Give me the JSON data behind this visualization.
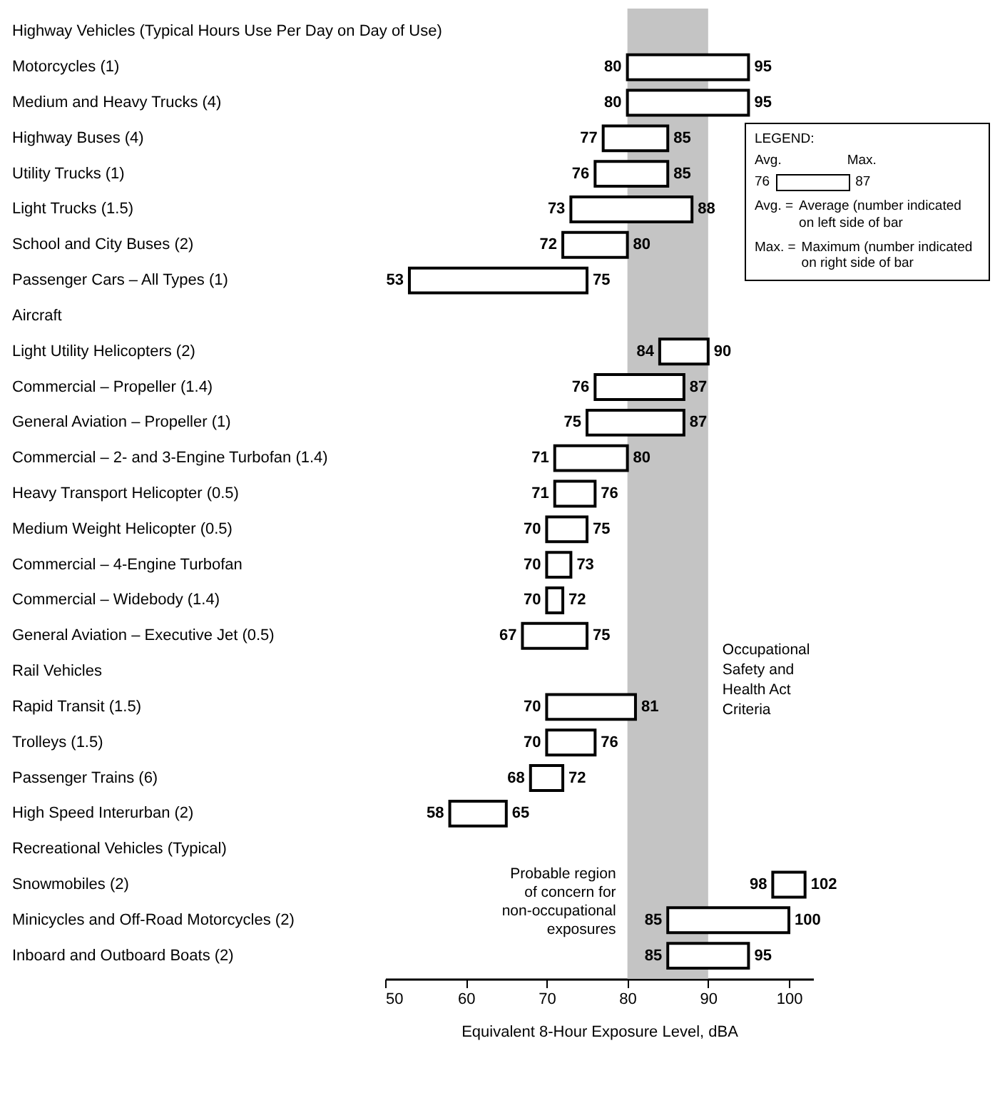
{
  "chart_data": {
    "type": "bar",
    "orientation": "horizontal",
    "xlabel": "Equivalent 8-Hour Exposure Level, dBA",
    "categories": [
      "Highway Vehicles (Typical Hours Use Per Day on Day of Use)",
      "Motorcycles (1)",
      "Medium and Heavy Trucks (4)",
      "Highway Buses (4)",
      "Utility Trucks (1)",
      "Light Trucks (1.5)",
      "School and City Buses (2)",
      "Passenger Cars – All Types (1)",
      "Aircraft",
      "Light Utility Helicopters (2)",
      "Commercial – Propeller (1.4)",
      "General Aviation – Propeller (1)",
      "Commercial – 2- and 3-Engine Turbofan (1.4)",
      "Heavy Transport Helicopter (0.5)",
      "Medium Weight Helicopter (0.5)",
      "Commercial – 4-Engine Turbofan",
      "Commercial – Widebody (1.4)",
      "General Aviation – Executive Jet (0.5)",
      "Rail Vehicles",
      "Rapid Transit (1.5)",
      "Trolleys (1.5)",
      "Passenger Trains (6)",
      "High Speed Interurban (2)",
      "Recreational Vehicles     (Typical)",
      "Snowmobiles (2)",
      "Minicycles and Off-Road Motorcycles (2)",
      "Inboard and Outboard Boats (2)"
    ],
    "base": [
      null,
      80,
      80,
      77,
      76,
      73,
      72,
      53,
      null,
      84,
      76,
      75,
      71,
      71,
      70,
      70,
      70,
      67,
      null,
      70,
      70,
      68,
      58,
      null,
      98,
      85,
      85
    ],
    "values": [
      null,
      15,
      15,
      8,
      9,
      15,
      8,
      22,
      null,
      6,
      11,
      12,
      9,
      5,
      5,
      3,
      2,
      8,
      null,
      11,
      6,
      4,
      7,
      null,
      4,
      15,
      10
    ],
    "value_labels": [
      null,
      "95",
      "95",
      "85",
      "85",
      "88",
      "80",
      "75",
      null,
      "90",
      "87",
      "87",
      "80",
      "76",
      "75",
      "73",
      "72",
      "75",
      null,
      "81",
      "76",
      "72",
      "65",
      null,
      "102",
      "100",
      "95"
    ],
    "color": "#ffffff",
    "xlim": [
      50,
      103
    ],
    "xticks": [
      50,
      60,
      70,
      80,
      90,
      100
    ],
    "bands": [
      {
        "axis": "x",
        "from": 80,
        "to": 90,
        "label": "Occupational Safety and Health Act Criteria",
        "color": "#c4c4c4"
      }
    ],
    "annotations": [
      "Probable region of concern for non-occupational exposures",
      "LEGEND:",
      "Avg.",
      "Max.",
      "76",
      "87",
      "Avg. = Average (number indicated on left side of bar",
      "Max. = Maximum (number indicated on right side of bar",
      {
        "text": "80",
        "x": 80,
        "y": "Motorcycles (1)"
      },
      {
        "text": "80",
        "x": 80,
        "y": "Medium and Heavy Trucks (4)"
      },
      {
        "text": "77",
        "x": 77,
        "y": "Highway Buses (4)"
      },
      {
        "text": "76",
        "x": 76,
        "y": "Utility Trucks (1)"
      },
      {
        "text": "73",
        "x": 73,
        "y": "Light Trucks (1.5)"
      },
      {
        "text": "72",
        "x": 72,
        "y": "School and City Buses (2)"
      },
      {
        "text": "53",
        "x": 53,
        "y": "Passenger Cars – All Types (1)"
      },
      {
        "text": "84",
        "x": 84,
        "y": "Light Utility Helicopters (2)"
      },
      {
        "text": "76",
        "x": 76,
        "y": "Commercial – Propeller (1.4)"
      },
      {
        "text": "75",
        "x": 75,
        "y": "General Aviation – Propeller (1)"
      },
      {
        "text": "71",
        "x": 71,
        "y": "Commercial – 2- and 3-Engine Turbofan (1.4)"
      },
      {
        "text": "71",
        "x": 71,
        "y": "Heavy Transport Helicopter (0.5)"
      },
      {
        "text": "70",
        "x": 70,
        "y": "Medium Weight Helicopter (0.5)"
      },
      {
        "text": "70",
        "x": 70,
        "y": "Commercial – 4-Engine Turbofan"
      },
      {
        "text": "70",
        "x": 70,
        "y": "Commercial – Widebody (1.4)"
      },
      {
        "text": "67",
        "x": 67,
        "y": "General Aviation – Executive Jet (0.5)"
      },
      {
        "text": "70",
        "x": 70,
        "y": "Rapid Transit (1.5)"
      },
      {
        "text": "70",
        "x": 70,
        "y": "Trolleys (1.5)"
      },
      {
        "text": "68",
        "x": 68,
        "y": "Passenger Trains (6)"
      },
      {
        "text": "58",
        "x": 58,
        "y": "High Speed Interurban (2)"
      },
      {
        "text": "98",
        "x": 98,
        "y": "Snowmobiles (2)"
      },
      {
        "text": "85",
        "x": 85,
        "y": "Minicycles and Off-Road Motorcycles (2)"
      },
      {
        "text": "85",
        "x": 85,
        "y": "Inboard and Outboard Boats (2)"
      }
    ]
  }
}
